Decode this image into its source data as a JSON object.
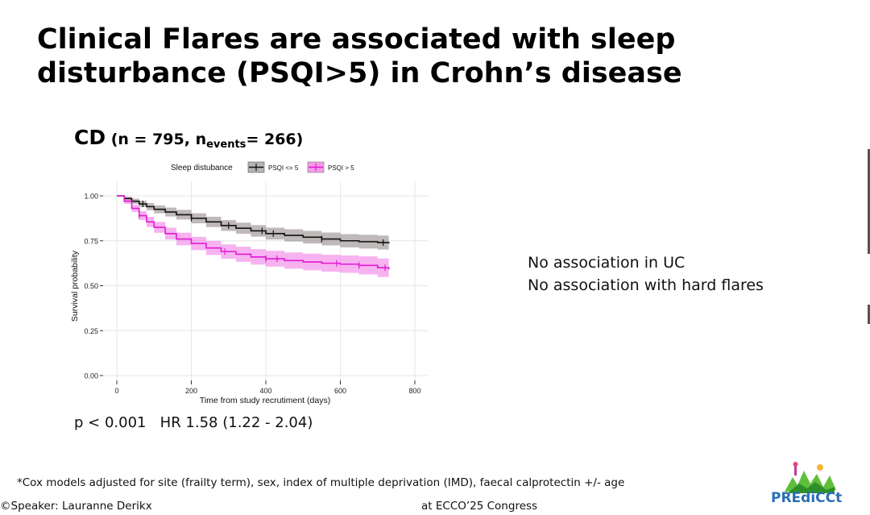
{
  "slide": {
    "title_line1": "Clinical Flares are associated with sleep",
    "title_line2": "disturbance (PSQI>5) in Crohn’s disease",
    "cd_label": "CD",
    "cd_n": " (n = 795, n",
    "cd_events_sub": "events",
    "cd_events": "= 266)",
    "stats_p": "p < 0.001",
    "stats_hr": "HR 1.58 (1.22 - 2.04)",
    "note_line1": "No association in UC",
    "note_line2": "No association with hard flares",
    "footnote": "*Cox models adjusted for site (frailty term), sex, index of multiple deprivation (IMD), faecal calprotectin +/- age",
    "speaker": "©Speaker:  Lauranne Derikx",
    "congress": "at ECCO’25 Congress",
    "logo_text": "PREdiCCt"
  },
  "chart_data": {
    "type": "line",
    "title": "",
    "xlabel": "Time from study recrutiment (days)",
    "ylabel": "Survival probability",
    "xlim": [
      0,
      800
    ],
    "ylim": [
      0,
      1.0
    ],
    "xticks": [
      0,
      200,
      400,
      600,
      800
    ],
    "yticks": [
      0.0,
      0.25,
      0.5,
      0.75,
      1.0
    ],
    "ytick_labels": [
      "0.00",
      "0.25",
      "0.50",
      "0.75",
      "1.00"
    ],
    "legend_title": "Sleep distubance",
    "legend_position": "top",
    "grid": true,
    "series": [
      {
        "name": "PSQI <= 5",
        "color": "#111111",
        "band_color": "#8a8080",
        "x": [
          0,
          20,
          40,
          60,
          80,
          100,
          130,
          160,
          200,
          240,
          280,
          320,
          360,
          400,
          450,
          500,
          550,
          600,
          650,
          700,
          730
        ],
        "y": [
          1.0,
          0.985,
          0.97,
          0.955,
          0.94,
          0.925,
          0.91,
          0.895,
          0.875,
          0.855,
          0.835,
          0.82,
          0.805,
          0.79,
          0.78,
          0.77,
          0.76,
          0.75,
          0.745,
          0.74,
          0.735
        ],
        "lower": [
          1.0,
          0.975,
          0.955,
          0.937,
          0.92,
          0.903,
          0.885,
          0.868,
          0.847,
          0.826,
          0.805,
          0.789,
          0.773,
          0.757,
          0.746,
          0.735,
          0.724,
          0.713,
          0.707,
          0.701,
          0.695
        ],
        "upper": [
          1.0,
          0.995,
          0.985,
          0.973,
          0.96,
          0.947,
          0.935,
          0.922,
          0.903,
          0.884,
          0.865,
          0.851,
          0.837,
          0.823,
          0.814,
          0.805,
          0.796,
          0.787,
          0.783,
          0.779,
          0.775
        ],
        "censor_x": [
          70,
          200,
          300,
          390,
          420,
          550,
          715
        ]
      },
      {
        "name": "PSQI > 5",
        "color": "#e01ad0",
        "band_color": "#f27ee6",
        "x": [
          0,
          20,
          40,
          60,
          80,
          100,
          130,
          160,
          200,
          240,
          280,
          320,
          360,
          400,
          450,
          500,
          550,
          600,
          650,
          700,
          730
        ],
        "y": [
          1.0,
          0.97,
          0.93,
          0.89,
          0.855,
          0.825,
          0.79,
          0.76,
          0.735,
          0.71,
          0.69,
          0.675,
          0.66,
          0.65,
          0.64,
          0.632,
          0.625,
          0.62,
          0.613,
          0.6,
          0.59
        ],
        "lower": [
          1.0,
          0.955,
          0.91,
          0.865,
          0.827,
          0.795,
          0.757,
          0.725,
          0.698,
          0.671,
          0.65,
          0.633,
          0.617,
          0.606,
          0.595,
          0.586,
          0.578,
          0.572,
          0.563,
          0.548,
          0.537
        ],
        "upper": [
          1.0,
          0.985,
          0.95,
          0.915,
          0.883,
          0.855,
          0.823,
          0.795,
          0.772,
          0.749,
          0.73,
          0.717,
          0.703,
          0.694,
          0.685,
          0.678,
          0.672,
          0.668,
          0.663,
          0.652,
          0.643
        ],
        "censor_x": [
          60,
          290,
          400,
          430,
          590,
          650,
          720
        ]
      }
    ]
  }
}
